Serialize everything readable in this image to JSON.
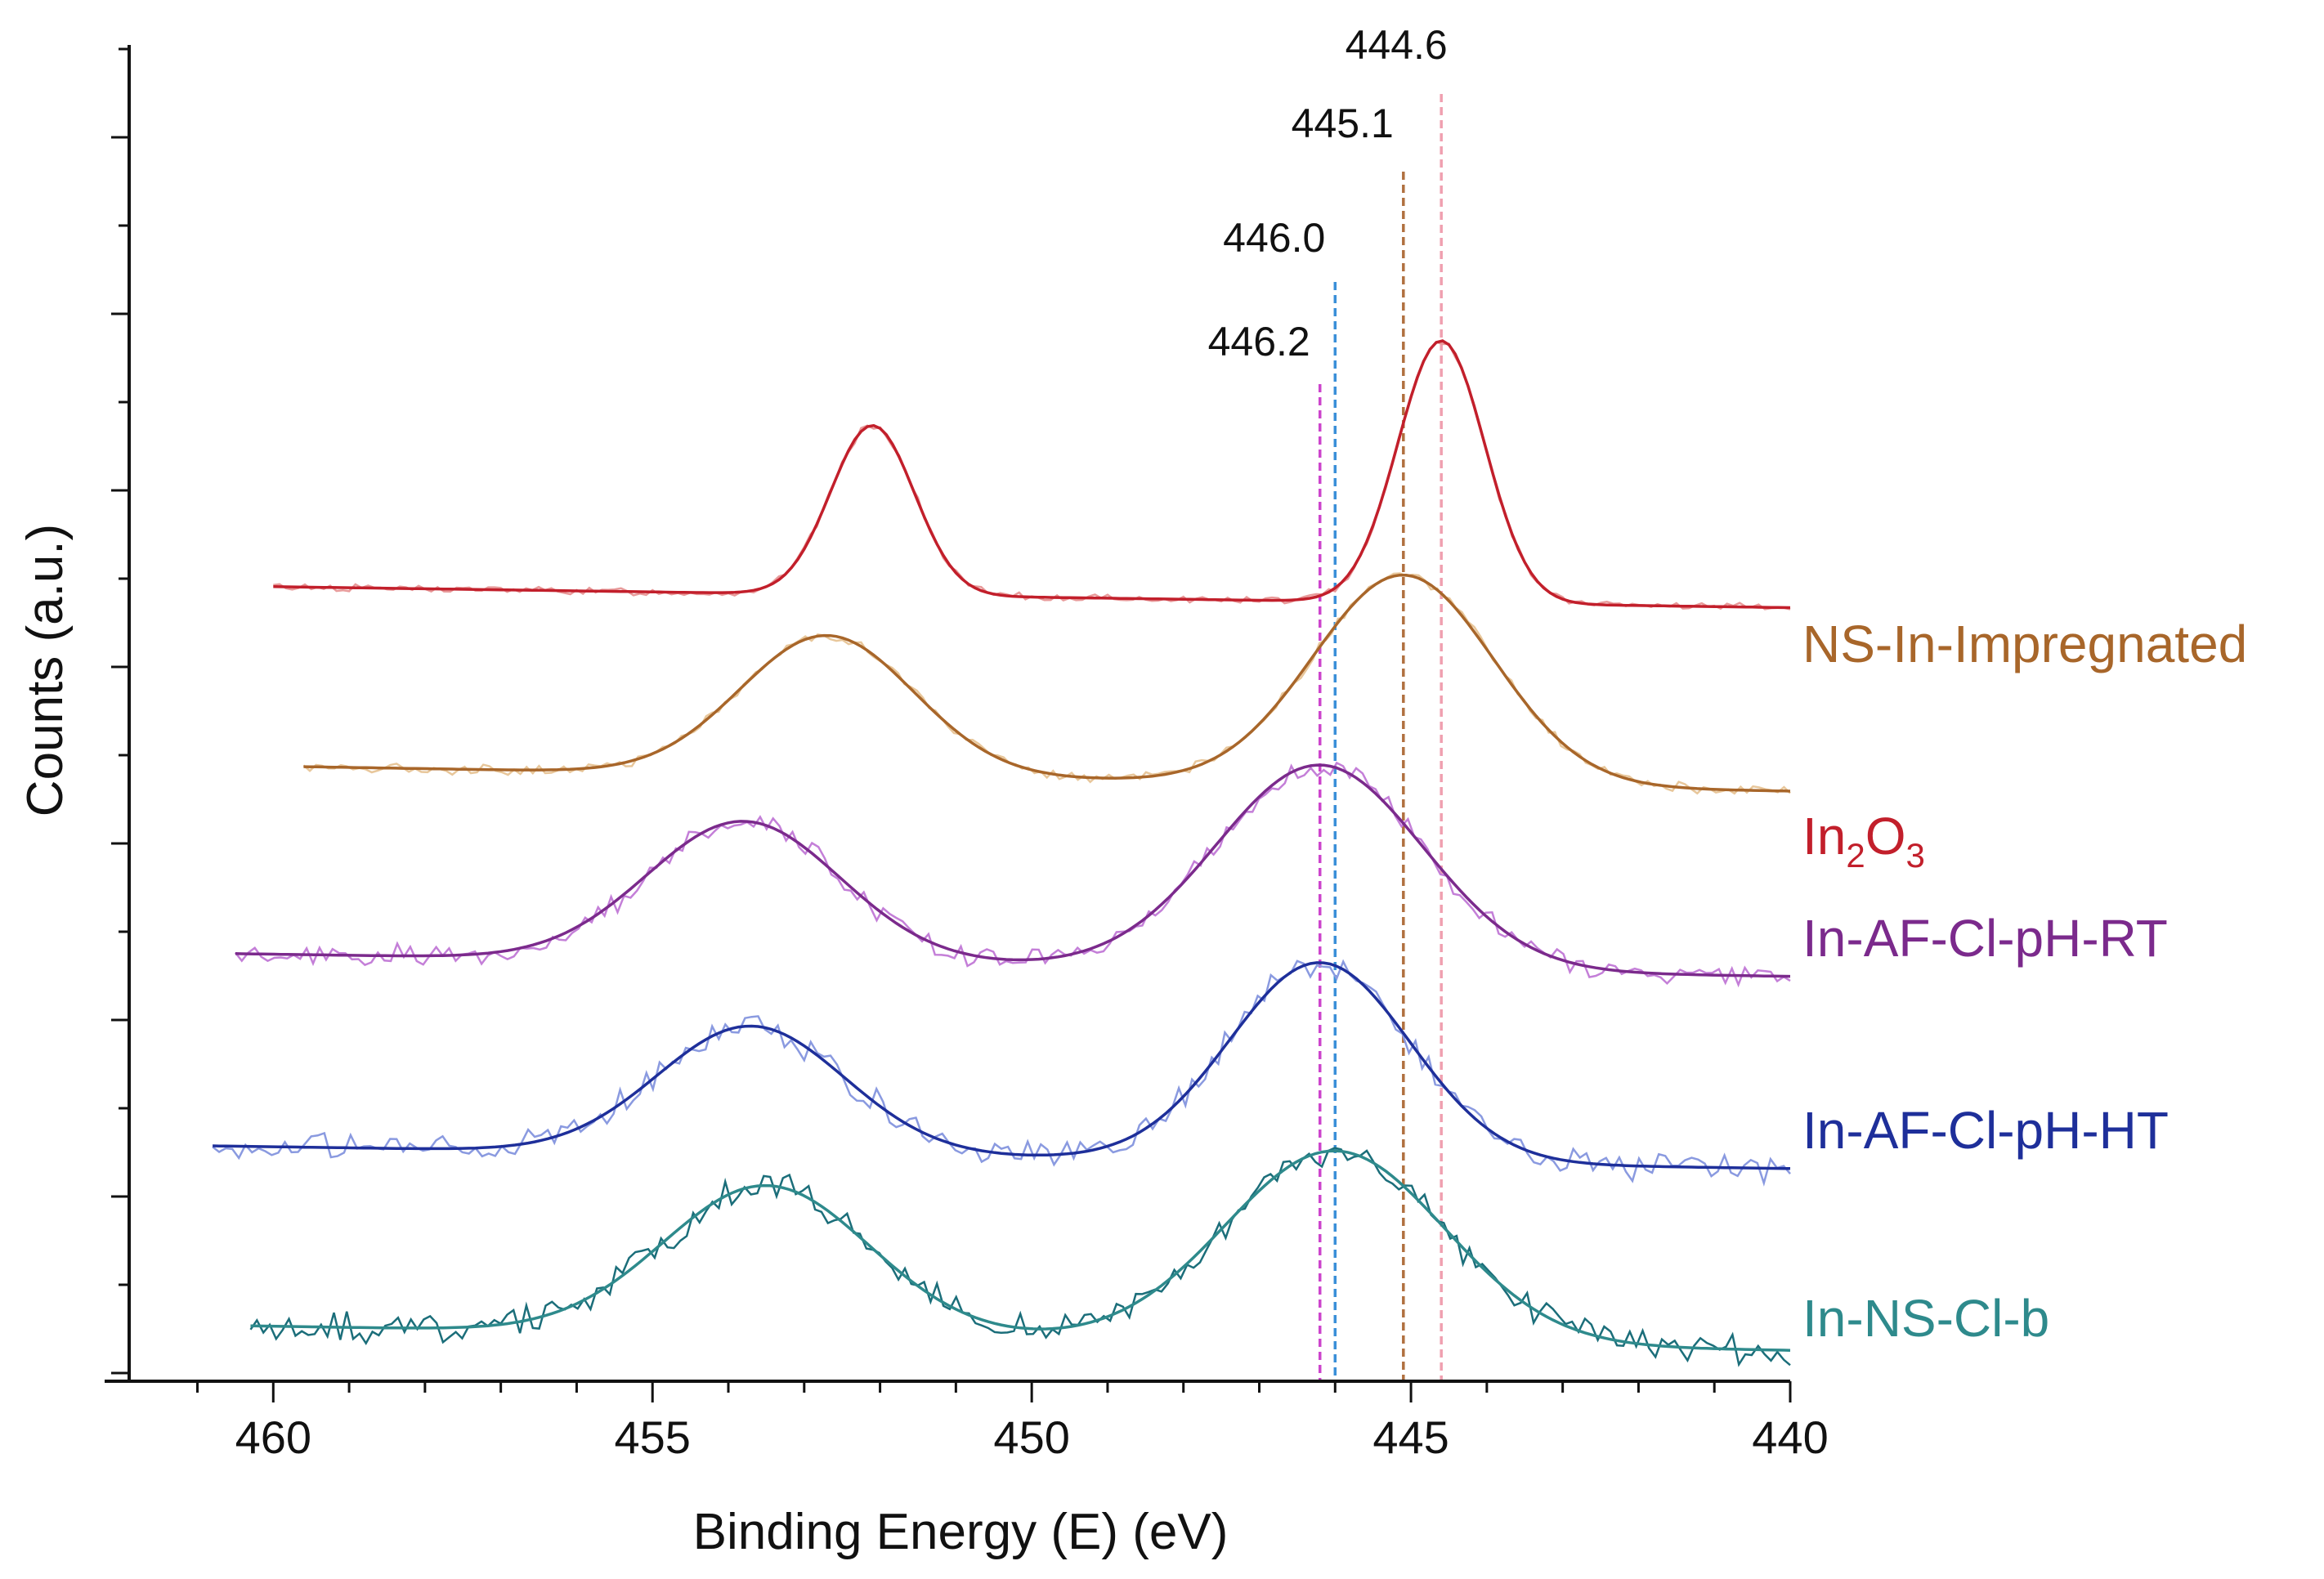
{
  "chart_data": {
    "type": "line",
    "title": "",
    "xlabel": "Binding Energy (E) (eV)",
    "ylabel": "Counts (a.u.)",
    "xlim": [
      461.9,
      440
    ],
    "x_reversed": true,
    "ylim": [
      0,
      7.6
    ],
    "x_ticks": [
      460,
      455,
      450,
      445,
      440
    ],
    "x_tick_labels": [
      "460",
      "455",
      "450",
      "445",
      "440"
    ],
    "y_tick_labels_shown": false,
    "grid": false,
    "reference_lines": [
      {
        "x": 446.2,
        "label": "446.2",
        "color": "#cc44cc"
      },
      {
        "x": 446.0,
        "label": "446.0",
        "color": "#3a8fd8"
      },
      {
        "x": 445.1,
        "label": "445.1",
        "color": "#b07040"
      },
      {
        "x": 444.6,
        "label": "444.6",
        "color": "#f0a0b0"
      }
    ],
    "series": [
      {
        "name": "In2O3",
        "label_main": "In",
        "label_sub1": "2",
        "label_mid": "O",
        "label_sub2": "3",
        "color": "#c21f2b",
        "raw_color": "#e89a9a",
        "x_range": [
          460,
          440
        ],
        "baseline_left": 4.5,
        "baseline_right": 4.38,
        "peaks": [
          {
            "center": 452.1,
            "fwhm": 1.3,
            "height": 0.97
          },
          {
            "center": 444.6,
            "fwhm": 1.35,
            "height": 1.5
          }
        ],
        "noise": 0.015
      },
      {
        "name": "NS-In-Impregnated",
        "color": "#a8662a",
        "raw_color": "#e8c79b",
        "x_range": [
          459.6,
          440
        ],
        "baseline_left": 3.47,
        "baseline_right": 3.33,
        "peaks": [
          {
            "center": 452.7,
            "fwhm": 2.7,
            "height": 0.8
          },
          {
            "center": 445.1,
            "fwhm": 2.8,
            "height": 1.2
          }
        ],
        "noise": 0.02
      },
      {
        "name": "In-AF-Cl-pH-RT",
        "color": "#7b2a8c",
        "raw_color": "#c47fd8",
        "x_range": [
          460.5,
          440
        ],
        "baseline_left": 2.4,
        "baseline_right": 2.27,
        "peaks": [
          {
            "center": 453.8,
            "fwhm": 3.0,
            "height": 0.8
          },
          {
            "center": 446.2,
            "fwhm": 3.2,
            "height": 1.17
          }
        ],
        "noise": 0.045
      },
      {
        "name": "In-AF-Cl-pH-HT",
        "color": "#1e2f9a",
        "raw_color": "#8a9ae0",
        "x_range": [
          460.8,
          440
        ],
        "baseline_left": 1.3,
        "baseline_right": 1.17,
        "peaks": [
          {
            "center": 453.7,
            "fwhm": 2.9,
            "height": 0.73
          },
          {
            "center": 446.2,
            "fwhm": 2.8,
            "height": 1.14
          }
        ],
        "noise": 0.055
      },
      {
        "name": "In-NS-Cl-b",
        "color": "#2e8a8c",
        "raw_color": "#1b6e7a",
        "x_range": [
          460.3,
          440
        ],
        "baseline_left": 0.27,
        "baseline_right": 0.13,
        "peaks": [
          {
            "center": 453.5,
            "fwhm": 3.2,
            "height": 0.85
          },
          {
            "center": 446.0,
            "fwhm": 3.4,
            "height": 1.1
          }
        ],
        "noise": 0.06
      }
    ]
  }
}
